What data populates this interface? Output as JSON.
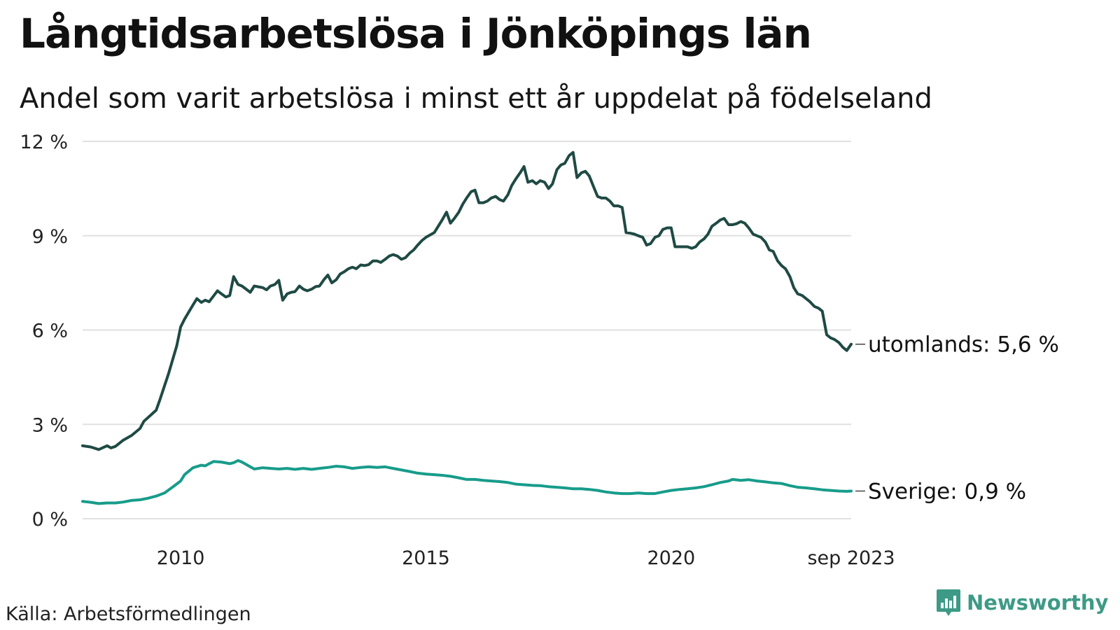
{
  "title": "Långtidsarbetslösa i Jönköpings län",
  "subtitle": "Andel som varit arbetslösa i minst ett år uppdelat på födelseland",
  "source": "Källa: Arbetsförmedlingen",
  "brand": {
    "name": "Newsworthy",
    "icon": "newsworthy-logo-icon",
    "color": "#3d9a86"
  },
  "chart_data": {
    "type": "line",
    "ylim": [
      0,
      12
    ],
    "yticks": [
      0,
      3,
      6,
      9,
      12
    ],
    "ytick_labels": [
      "0 %",
      "3 %",
      "6 %",
      "9 %",
      "12 %"
    ],
    "xlim": [
      2008.0,
      2023.67
    ],
    "xticks": [
      2010,
      2015,
      2020,
      2023.67
    ],
    "xtick_labels": [
      "2010",
      "2015",
      "2020",
      "sep 2023"
    ],
    "grid": true,
    "series": [
      {
        "name": "utomlands",
        "end_label": "utomlands: 5,6 %",
        "color": "#1f4a44",
        "points": [
          [
            2008.0,
            2.32
          ],
          [
            2008.17,
            2.28
          ],
          [
            2008.33,
            2.2
          ],
          [
            2008.5,
            2.32
          ],
          [
            2008.58,
            2.25
          ],
          [
            2008.67,
            2.3
          ],
          [
            2008.83,
            2.5
          ],
          [
            2009.0,
            2.65
          ],
          [
            2009.17,
            2.87
          ],
          [
            2009.25,
            3.1
          ],
          [
            2009.5,
            3.45
          ],
          [
            2009.58,
            3.8
          ],
          [
            2009.75,
            4.6
          ],
          [
            2009.92,
            5.5
          ],
          [
            2010.0,
            6.1
          ],
          [
            2010.08,
            6.35
          ],
          [
            2010.25,
            6.8
          ],
          [
            2010.33,
            7.0
          ],
          [
            2010.42,
            6.88
          ],
          [
            2010.5,
            6.95
          ],
          [
            2010.58,
            6.9
          ],
          [
            2010.75,
            7.25
          ],
          [
            2010.83,
            7.15
          ],
          [
            2010.92,
            7.05
          ],
          [
            2011.0,
            7.1
          ],
          [
            2011.08,
            7.7
          ],
          [
            2011.17,
            7.45
          ],
          [
            2011.25,
            7.4
          ],
          [
            2011.42,
            7.2
          ],
          [
            2011.5,
            7.4
          ],
          [
            2011.67,
            7.35
          ],
          [
            2011.75,
            7.28
          ],
          [
            2011.83,
            7.4
          ],
          [
            2011.92,
            7.45
          ],
          [
            2012.0,
            7.58
          ],
          [
            2012.08,
            6.95
          ],
          [
            2012.17,
            7.15
          ],
          [
            2012.25,
            7.2
          ],
          [
            2012.33,
            7.22
          ],
          [
            2012.42,
            7.4
          ],
          [
            2012.5,
            7.3
          ],
          [
            2012.58,
            7.25
          ],
          [
            2012.67,
            7.3
          ],
          [
            2012.75,
            7.38
          ],
          [
            2012.83,
            7.4
          ],
          [
            2012.92,
            7.6
          ],
          [
            2013.0,
            7.75
          ],
          [
            2013.08,
            7.5
          ],
          [
            2013.17,
            7.6
          ],
          [
            2013.25,
            7.78
          ],
          [
            2013.33,
            7.85
          ],
          [
            2013.42,
            7.95
          ],
          [
            2013.5,
            8.0
          ],
          [
            2013.58,
            7.95
          ],
          [
            2013.67,
            8.07
          ],
          [
            2013.75,
            8.05
          ],
          [
            2013.83,
            8.08
          ],
          [
            2013.92,
            8.2
          ],
          [
            2014.0,
            8.2
          ],
          [
            2014.08,
            8.15
          ],
          [
            2014.17,
            8.25
          ],
          [
            2014.25,
            8.35
          ],
          [
            2014.33,
            8.4
          ],
          [
            2014.42,
            8.35
          ],
          [
            2014.5,
            8.25
          ],
          [
            2014.58,
            8.3
          ],
          [
            2014.67,
            8.45
          ],
          [
            2014.75,
            8.55
          ],
          [
            2014.83,
            8.7
          ],
          [
            2014.92,
            8.85
          ],
          [
            2015.0,
            8.95
          ],
          [
            2015.17,
            9.1
          ],
          [
            2015.25,
            9.3
          ],
          [
            2015.33,
            9.5
          ],
          [
            2015.42,
            9.75
          ],
          [
            2015.5,
            9.4
          ],
          [
            2015.58,
            9.55
          ],
          [
            2015.67,
            9.75
          ],
          [
            2015.75,
            10.0
          ],
          [
            2015.83,
            10.2
          ],
          [
            2015.92,
            10.4
          ],
          [
            2016.0,
            10.45
          ],
          [
            2016.08,
            10.05
          ],
          [
            2016.17,
            10.05
          ],
          [
            2016.25,
            10.1
          ],
          [
            2016.33,
            10.2
          ],
          [
            2016.42,
            10.25
          ],
          [
            2016.5,
            10.15
          ],
          [
            2016.58,
            10.1
          ],
          [
            2016.67,
            10.3
          ],
          [
            2016.75,
            10.6
          ],
          [
            2016.83,
            10.8
          ],
          [
            2016.92,
            11.0
          ],
          [
            2017.0,
            11.2
          ],
          [
            2017.08,
            10.7
          ],
          [
            2017.17,
            10.75
          ],
          [
            2017.25,
            10.65
          ],
          [
            2017.33,
            10.75
          ],
          [
            2017.42,
            10.7
          ],
          [
            2017.5,
            10.5
          ],
          [
            2017.58,
            10.65
          ],
          [
            2017.67,
            11.1
          ],
          [
            2017.75,
            11.25
          ],
          [
            2017.83,
            11.3
          ],
          [
            2017.92,
            11.55
          ],
          [
            2018.0,
            11.65
          ],
          [
            2018.08,
            10.85
          ],
          [
            2018.17,
            11.0
          ],
          [
            2018.25,
            11.05
          ],
          [
            2018.33,
            10.9
          ],
          [
            2018.42,
            10.55
          ],
          [
            2018.5,
            10.25
          ],
          [
            2018.58,
            10.2
          ],
          [
            2018.67,
            10.2
          ],
          [
            2018.75,
            10.1
          ],
          [
            2018.83,
            9.95
          ],
          [
            2018.92,
            9.95
          ],
          [
            2019.0,
            9.9
          ],
          [
            2019.08,
            9.1
          ],
          [
            2019.17,
            9.08
          ],
          [
            2019.25,
            9.05
          ],
          [
            2019.33,
            9.0
          ],
          [
            2019.42,
            8.95
          ],
          [
            2019.5,
            8.7
          ],
          [
            2019.58,
            8.75
          ],
          [
            2019.67,
            8.95
          ],
          [
            2019.75,
            9.0
          ],
          [
            2019.83,
            9.2
          ],
          [
            2019.92,
            9.25
          ],
          [
            2020.0,
            9.25
          ],
          [
            2020.08,
            8.65
          ],
          [
            2020.17,
            8.65
          ],
          [
            2020.33,
            8.65
          ],
          [
            2020.42,
            8.6
          ],
          [
            2020.5,
            8.65
          ],
          [
            2020.58,
            8.8
          ],
          [
            2020.67,
            8.9
          ],
          [
            2020.75,
            9.05
          ],
          [
            2020.83,
            9.3
          ],
          [
            2020.92,
            9.4
          ],
          [
            2021.0,
            9.5
          ],
          [
            2021.08,
            9.55
          ],
          [
            2021.17,
            9.35
          ],
          [
            2021.25,
            9.35
          ],
          [
            2021.33,
            9.38
          ],
          [
            2021.42,
            9.45
          ],
          [
            2021.5,
            9.4
          ],
          [
            2021.58,
            9.25
          ],
          [
            2021.67,
            9.05
          ],
          [
            2021.75,
            9.0
          ],
          [
            2021.83,
            8.95
          ],
          [
            2021.92,
            8.8
          ],
          [
            2022.0,
            8.55
          ],
          [
            2022.08,
            8.5
          ],
          [
            2022.17,
            8.2
          ],
          [
            2022.25,
            8.05
          ],
          [
            2022.33,
            7.95
          ],
          [
            2022.42,
            7.7
          ],
          [
            2022.5,
            7.35
          ],
          [
            2022.58,
            7.15
          ],
          [
            2022.67,
            7.1
          ],
          [
            2022.75,
            7.0
          ],
          [
            2022.83,
            6.9
          ],
          [
            2022.92,
            6.75
          ],
          [
            2023.0,
            6.7
          ],
          [
            2023.08,
            6.6
          ],
          [
            2023.17,
            5.85
          ],
          [
            2023.25,
            5.75
          ],
          [
            2023.33,
            5.7
          ],
          [
            2023.42,
            5.6
          ],
          [
            2023.5,
            5.45
          ],
          [
            2023.58,
            5.35
          ],
          [
            2023.67,
            5.55
          ]
        ]
      },
      {
        "name": "Sverige",
        "end_label": "Sverige: 0,9 %",
        "color": "#179c8a",
        "points": [
          [
            2008.0,
            0.55
          ],
          [
            2008.17,
            0.52
          ],
          [
            2008.33,
            0.48
          ],
          [
            2008.5,
            0.5
          ],
          [
            2008.67,
            0.5
          ],
          [
            2008.83,
            0.53
          ],
          [
            2009.0,
            0.58
          ],
          [
            2009.17,
            0.6
          ],
          [
            2009.33,
            0.65
          ],
          [
            2009.5,
            0.72
          ],
          [
            2009.67,
            0.82
          ],
          [
            2009.83,
            1.0
          ],
          [
            2010.0,
            1.2
          ],
          [
            2010.08,
            1.4
          ],
          [
            2010.25,
            1.62
          ],
          [
            2010.42,
            1.7
          ],
          [
            2010.5,
            1.68
          ],
          [
            2010.58,
            1.75
          ],
          [
            2010.67,
            1.82
          ],
          [
            2010.83,
            1.8
          ],
          [
            2011.0,
            1.75
          ],
          [
            2011.08,
            1.78
          ],
          [
            2011.17,
            1.85
          ],
          [
            2011.25,
            1.8
          ],
          [
            2011.42,
            1.65
          ],
          [
            2011.5,
            1.58
          ],
          [
            2011.67,
            1.62
          ],
          [
            2011.83,
            1.6
          ],
          [
            2012.0,
            1.58
          ],
          [
            2012.17,
            1.6
          ],
          [
            2012.33,
            1.57
          ],
          [
            2012.5,
            1.6
          ],
          [
            2012.67,
            1.57
          ],
          [
            2012.83,
            1.6
          ],
          [
            2013.0,
            1.63
          ],
          [
            2013.17,
            1.67
          ],
          [
            2013.33,
            1.65
          ],
          [
            2013.5,
            1.6
          ],
          [
            2013.67,
            1.63
          ],
          [
            2013.83,
            1.65
          ],
          [
            2014.0,
            1.63
          ],
          [
            2014.17,
            1.65
          ],
          [
            2014.33,
            1.6
          ],
          [
            2014.5,
            1.55
          ],
          [
            2014.67,
            1.5
          ],
          [
            2014.83,
            1.45
          ],
          [
            2015.0,
            1.42
          ],
          [
            2015.17,
            1.4
          ],
          [
            2015.33,
            1.38
          ],
          [
            2015.5,
            1.35
          ],
          [
            2015.67,
            1.3
          ],
          [
            2015.83,
            1.25
          ],
          [
            2016.0,
            1.25
          ],
          [
            2016.17,
            1.22
          ],
          [
            2016.33,
            1.2
          ],
          [
            2016.5,
            1.18
          ],
          [
            2016.67,
            1.15
          ],
          [
            2016.83,
            1.1
          ],
          [
            2017.0,
            1.08
          ],
          [
            2017.17,
            1.06
          ],
          [
            2017.33,
            1.05
          ],
          [
            2017.5,
            1.02
          ],
          [
            2017.67,
            1.0
          ],
          [
            2017.83,
            0.98
          ],
          [
            2018.0,
            0.95
          ],
          [
            2018.17,
            0.95
          ],
          [
            2018.33,
            0.93
          ],
          [
            2018.5,
            0.9
          ],
          [
            2018.67,
            0.85
          ],
          [
            2018.83,
            0.82
          ],
          [
            2019.0,
            0.8
          ],
          [
            2019.17,
            0.8
          ],
          [
            2019.33,
            0.82
          ],
          [
            2019.5,
            0.8
          ],
          [
            2019.67,
            0.8
          ],
          [
            2019.83,
            0.85
          ],
          [
            2020.0,
            0.9
          ],
          [
            2020.17,
            0.93
          ],
          [
            2020.33,
            0.95
          ],
          [
            2020.5,
            0.98
          ],
          [
            2020.67,
            1.02
          ],
          [
            2020.83,
            1.08
          ],
          [
            2021.0,
            1.15
          ],
          [
            2021.17,
            1.2
          ],
          [
            2021.25,
            1.25
          ],
          [
            2021.42,
            1.22
          ],
          [
            2021.58,
            1.24
          ],
          [
            2021.75,
            1.2
          ],
          [
            2021.92,
            1.17
          ],
          [
            2022.08,
            1.14
          ],
          [
            2022.25,
            1.12
          ],
          [
            2022.42,
            1.05
          ],
          [
            2022.58,
            1.0
          ],
          [
            2022.75,
            0.98
          ],
          [
            2022.92,
            0.95
          ],
          [
            2023.08,
            0.92
          ],
          [
            2023.25,
            0.9
          ],
          [
            2023.42,
            0.88
          ],
          [
            2023.58,
            0.87
          ],
          [
            2023.67,
            0.88
          ]
        ]
      }
    ]
  }
}
